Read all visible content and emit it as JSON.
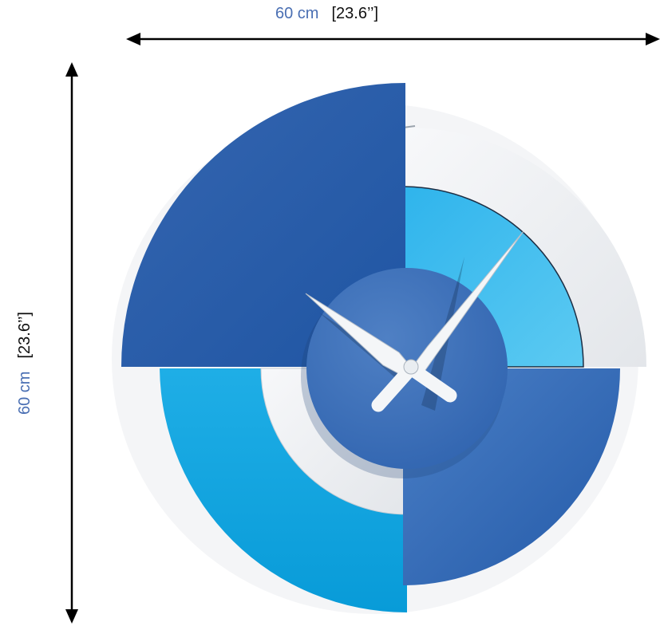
{
  "width_dimension": {
    "metric": "60 cm",
    "imperial": "[23.6’’]"
  },
  "height_dimension": {
    "metric": "60 cm",
    "imperial": "[23.6’’]"
  },
  "colors": {
    "metric_text": "#4a6fb3",
    "navy_blue": "#2a5fab",
    "medium_blue": "#3d73bf",
    "light_blue": "#28a9e2",
    "sky_blue": "#4cc3ef",
    "white_segment": "#eef0f3",
    "hands": "#f4f6f8"
  }
}
